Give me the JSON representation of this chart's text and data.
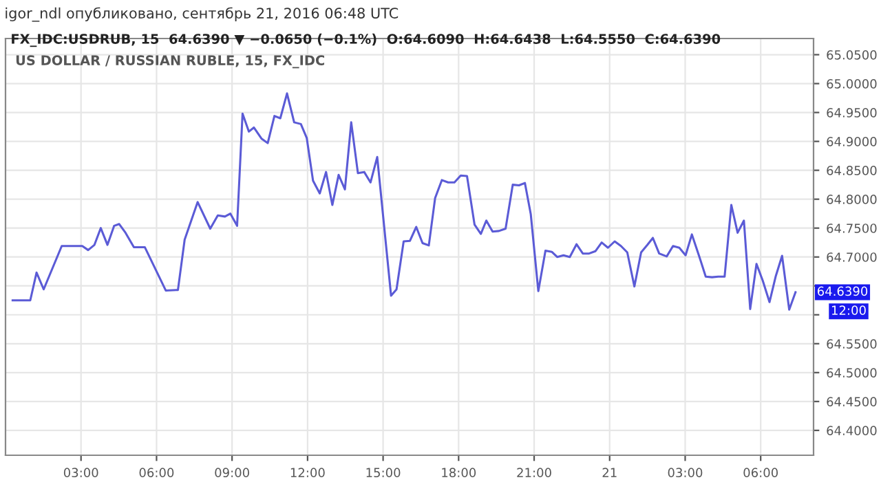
{
  "chart_data": {
    "type": "line",
    "title": "igor_ndl опубликовано, сентябрь 21, 2016 06:48 UTC",
    "subtitle": "FX_IDC:USDRUB, 15  64.6390 ▼ −0.0650 (−0.1%)  O:64.6090  H:64.6438  L:64.5550  C:64.6390",
    "annotations": [
      "US DOLLAR / RUSSIAN RUBLE, 15, FX_IDC",
      {
        "text": "64.6390",
        "x": "2016-09-21T07:23",
        "y": 64.639
      },
      "12:00"
    ],
    "x": [
      "2016-09-20T00:17",
      "2016-09-20T00:59",
      "2016-09-20T01:14",
      "2016-09-20T01:31",
      "2016-09-20T02:14",
      "2016-09-20T03:03",
      "2016-09-20T03:17",
      "2016-09-20T03:32",
      "2016-09-20T03:47",
      "2016-09-20T04:03",
      "2016-09-20T04:19",
      "2016-09-20T04:31",
      "2016-09-20T04:46",
      "2016-09-20T05:06",
      "2016-09-20T05:32",
      "2016-09-20T06:22",
      "2016-09-20T06:51",
      "2016-09-20T07:07",
      "2016-09-20T07:38",
      "2016-09-20T08:08",
      "2016-09-20T08:26",
      "2016-09-20T08:43",
      "2016-09-20T08:56",
      "2016-09-20T09:12",
      "2016-09-20T09:25",
      "2016-09-20T09:40",
      "2016-09-20T09:52",
      "2016-09-20T10:10",
      "2016-09-20T10:25",
      "2016-09-20T10:41",
      "2016-09-20T10:55",
      "2016-09-20T11:11",
      "2016-09-20T11:28",
      "2016-09-20T11:44",
      "2016-09-20T11:58",
      "2016-09-20T12:13",
      "2016-09-20T12:29",
      "2016-09-20T12:44",
      "2016-09-20T12:59",
      "2016-09-20T13:14",
      "2016-09-20T13:29",
      "2016-09-20T13:44",
      "2016-09-20T14:00",
      "2016-09-20T14:15",
      "2016-09-20T14:30",
      "2016-09-20T14:46",
      "2016-09-20T15:19",
      "2016-09-20T15:32",
      "2016-09-20T15:49",
      "2016-09-20T16:04",
      "2016-09-20T16:19",
      "2016-09-20T16:34",
      "2016-09-20T16:49",
      "2016-09-20T17:04",
      "2016-09-20T17:20",
      "2016-09-20T17:35",
      "2016-09-20T17:50",
      "2016-09-20T18:05",
      "2016-09-20T18:20",
      "2016-09-20T18:38",
      "2016-09-20T18:53",
      "2016-09-20T19:06",
      "2016-09-20T19:21",
      "2016-09-20T19:36",
      "2016-09-20T19:52",
      "2016-09-20T20:09",
      "2016-09-20T20:24",
      "2016-09-20T20:38",
      "2016-09-20T20:52",
      "2016-09-20T21:10",
      "2016-09-20T21:27",
      "2016-09-20T21:42",
      "2016-09-20T21:55",
      "2016-09-20T22:10",
      "2016-09-20T22:25",
      "2016-09-20T22:41",
      "2016-09-20T22:56",
      "2016-09-20T23:11",
      "2016-09-20T23:26",
      "2016-09-20T23:41",
      "2016-09-20T23:56",
      "2016-09-21T00:12",
      "2016-09-21T00:27",
      "2016-09-21T00:42",
      "2016-09-21T00:59",
      "2016-09-21T01:15",
      "2016-09-21T01:30",
      "2016-09-21T01:43",
      "2016-09-21T01:58",
      "2016-09-21T02:16",
      "2016-09-21T02:31",
      "2016-09-21T02:46",
      "2016-09-21T03:01",
      "2016-09-21T03:16",
      "2016-09-21T03:34",
      "2016-09-21T03:49",
      "2016-09-21T04:04",
      "2016-09-21T04:19",
      "2016-09-21T04:34",
      "2016-09-21T04:50",
      "2016-09-21T05:05",
      "2016-09-21T05:20",
      "2016-09-21T05:35",
      "2016-09-21T05:50",
      "2016-09-21T06:05",
      "2016-09-21T06:21",
      "2016-09-21T06:36",
      "2016-09-21T06:51",
      "2016-09-21T07:08",
      "2016-09-21T07:23"
    ],
    "series": [
      {
        "color": "#5b5bd6",
        "values": [
          64.625,
          64.625,
          64.673,
          64.644,
          64.719,
          64.719,
          64.712,
          64.721,
          64.75,
          64.721,
          64.754,
          64.757,
          64.742,
          64.717,
          64.717,
          64.642,
          64.643,
          64.73,
          64.795,
          64.749,
          64.772,
          64.77,
          64.775,
          64.754,
          64.948,
          64.917,
          64.924,
          64.905,
          64.897,
          64.944,
          64.94,
          64.983,
          64.933,
          64.93,
          64.906,
          64.832,
          64.81,
          64.847,
          64.79,
          64.842,
          64.817,
          64.933,
          64.845,
          64.847,
          64.829,
          64.873,
          64.633,
          64.644,
          64.727,
          64.728,
          64.752,
          64.724,
          64.72,
          64.802,
          64.833,
          64.829,
          64.829,
          64.841,
          64.84,
          64.756,
          64.74,
          64.763,
          64.744,
          64.745,
          64.749,
          64.825,
          64.824,
          64.828,
          64.774,
          64.641,
          64.711,
          64.709,
          64.7,
          64.703,
          64.7,
          64.722,
          64.706,
          64.706,
          64.71,
          64.725,
          64.716,
          64.727,
          64.719,
          64.708,
          64.649,
          64.708,
          64.721,
          64.733,
          64.706,
          64.701,
          64.719,
          64.716,
          64.703,
          64.739,
          64.7,
          64.666,
          64.665,
          64.666,
          64.666,
          64.79,
          64.742,
          64.763,
          64.61,
          64.688,
          64.659,
          64.622,
          64.667,
          64.702,
          64.609,
          64.639
        ]
      }
    ],
    "xlim": [
      "2016-09-20T00:00",
      "2016-09-21T08:06"
    ],
    "ylim": [
      64.357,
      65.078
    ],
    "xticks": [
      {
        "value": "2016-09-20T03:00",
        "label": "03:00"
      },
      {
        "value": "2016-09-20T06:00",
        "label": "06:00"
      },
      {
        "value": "2016-09-20T09:00",
        "label": "09:00"
      },
      {
        "value": "2016-09-20T12:00",
        "label": "12:00"
      },
      {
        "value": "2016-09-20T15:00",
        "label": "15:00"
      },
      {
        "value": "2016-09-20T18:00",
        "label": "18:00"
      },
      {
        "value": "2016-09-20T21:00",
        "label": "21:00"
      },
      {
        "value": "2016-09-21T00:00",
        "label": "21"
      },
      {
        "value": "2016-09-21T03:00",
        "label": "03:00"
      },
      {
        "value": "2016-09-21T06:00",
        "label": "06:00"
      }
    ],
    "yticks": [
      {
        "value": 64.4,
        "label": "64.4000"
      },
      {
        "value": 64.45,
        "label": "64.4500"
      },
      {
        "value": 64.5,
        "label": "64.5000"
      },
      {
        "value": 64.55,
        "label": "64.5500"
      },
      {
        "value": 64.6,
        "label": null
      },
      {
        "value": 64.65,
        "label": null
      },
      {
        "value": 64.7,
        "label": "64.7000"
      },
      {
        "value": 64.75,
        "label": "64.7500"
      },
      {
        "value": 64.8,
        "label": "64.8000"
      },
      {
        "value": 64.85,
        "label": "64.8500"
      },
      {
        "value": 64.9,
        "label": "64.9000"
      },
      {
        "value": 64.95,
        "label": "64.9500"
      },
      {
        "value": 65.0,
        "label": "65.0000"
      },
      {
        "value": 65.05,
        "label": "65.0500"
      }
    ],
    "grid": true,
    "marker": "none",
    "line_style": "solid"
  }
}
